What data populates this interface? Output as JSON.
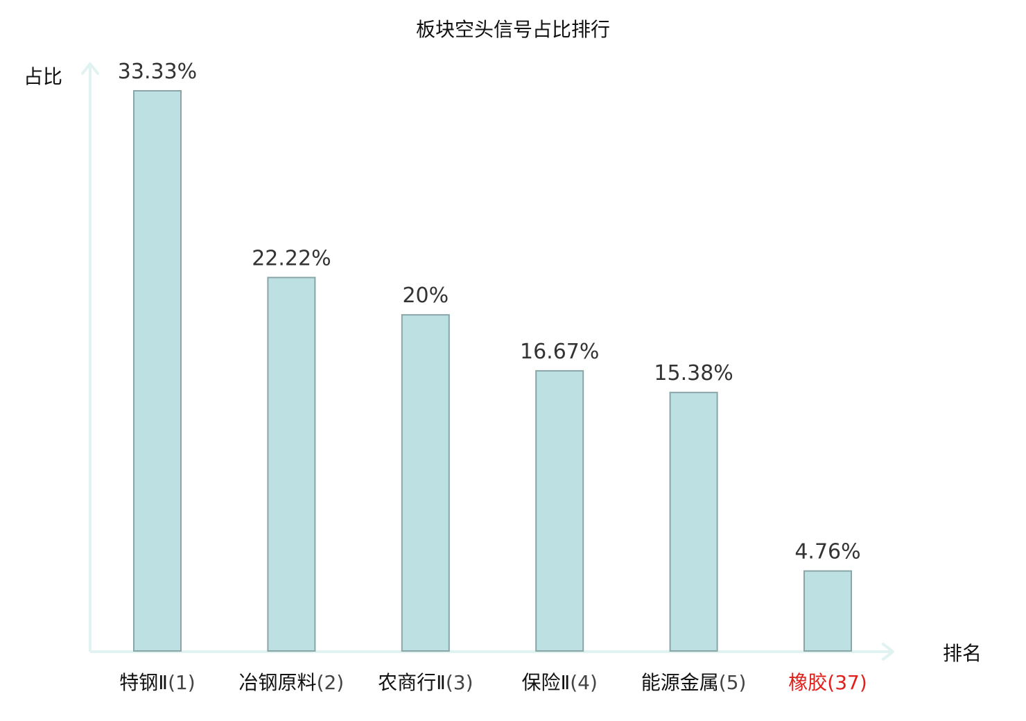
{
  "chart_data": {
    "type": "bar",
    "title": "板块空头信号占比排行",
    "xlabel": "排名",
    "ylabel": "占比",
    "categories": [
      {
        "name": "特钢Ⅱ",
        "rank": "(1)"
      },
      {
        "name": "冶钢原料",
        "rank": "(2)"
      },
      {
        "name": "农商行Ⅱ",
        "rank": "(3)"
      },
      {
        "name": "保险Ⅱ",
        "rank": "(4)"
      },
      {
        "name": "能源金属",
        "rank": "(5)"
      },
      {
        "name": "橡胶",
        "rank": "(37)"
      }
    ],
    "values": [
      33.33,
      22.22,
      20,
      16.67,
      15.38,
      4.76
    ],
    "value_labels": [
      "33.33%",
      "22.22%",
      "20%",
      "16.67%",
      "15.38%",
      "4.76%"
    ],
    "highlight_index": 5,
    "ylim": [
      0,
      33.33
    ],
    "grid": false,
    "legend": "none",
    "colors": {
      "bar_fill": "#bde0e3",
      "bar_stroke": "#8aa5a8",
      "axis": "#e0f3f1",
      "highlight_text": "#e0201b",
      "normal_text": "#111111",
      "value_text": "#333333"
    }
  }
}
